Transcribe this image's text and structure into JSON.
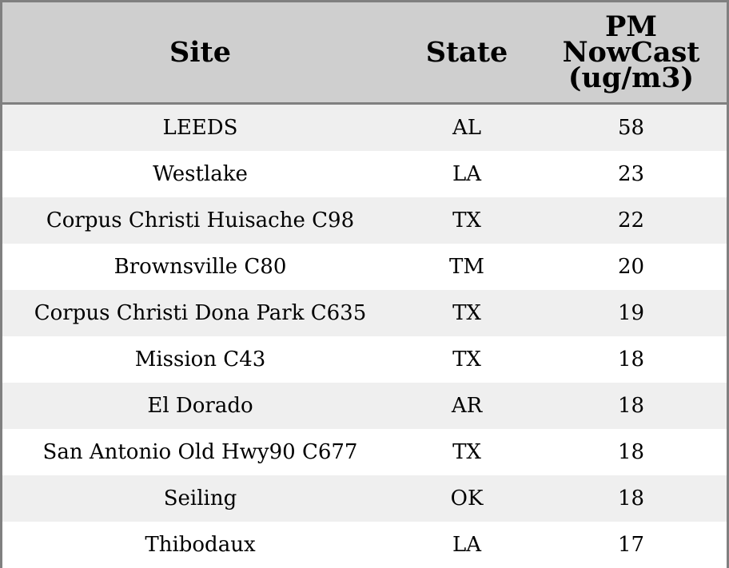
{
  "header": {
    "site": "Site",
    "state": "State",
    "pm_line1": "PM",
    "pm_line2": "NowCast",
    "pm_line3": "(ug/m3)"
  },
  "rows": [
    {
      "site": "LEEDS",
      "state": "AL",
      "pm": "58"
    },
    {
      "site": "Westlake",
      "state": "LA",
      "pm": "23"
    },
    {
      "site": "Corpus Christi Huisache C98",
      "state": "TX",
      "pm": "22"
    },
    {
      "site": "Brownsville C80",
      "state": "TM",
      "pm": "20"
    },
    {
      "site": "Corpus Christi Dona Park C635",
      "state": "TX",
      "pm": "19"
    },
    {
      "site": "Mission C43",
      "state": "TX",
      "pm": "18"
    },
    {
      "site": "El Dorado",
      "state": "AR",
      "pm": "18"
    },
    {
      "site": "San Antonio Old Hwy90 C677",
      "state": "TX",
      "pm": "18"
    },
    {
      "site": "Seiling",
      "state": "OK",
      "pm": "18"
    },
    {
      "site": "Thibodaux",
      "state": "LA",
      "pm": "17"
    }
  ],
  "colors": {
    "header_bg": "#cfcfcf",
    "stripe_bg": "#efefef",
    "border": "#808080"
  }
}
